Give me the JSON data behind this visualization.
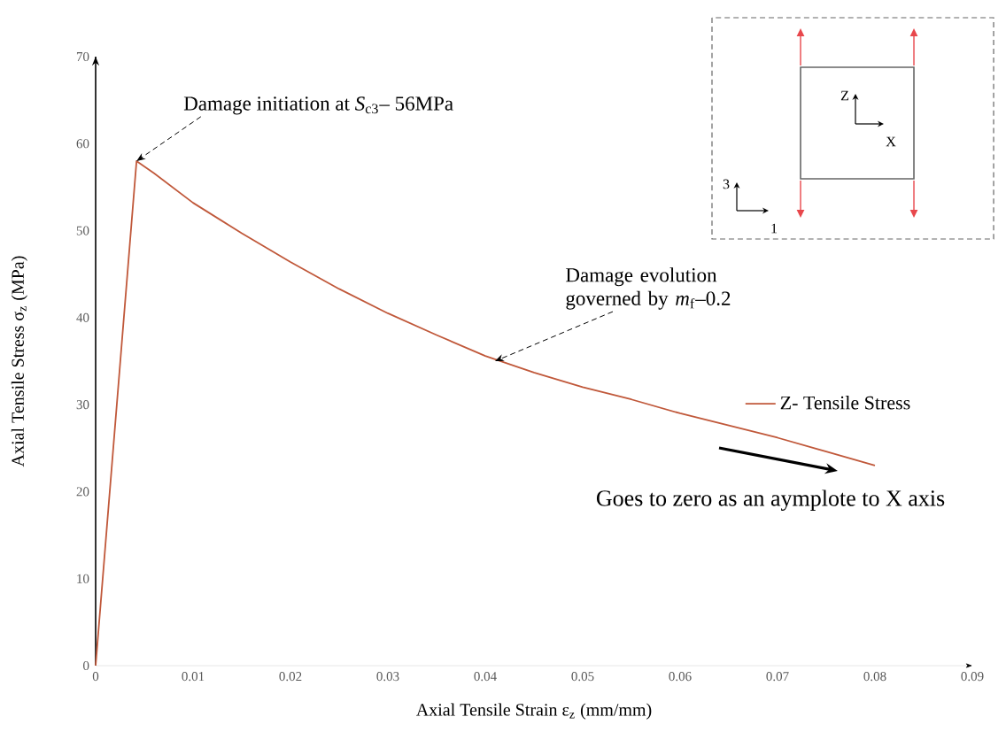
{
  "chart_data": {
    "type": "line",
    "xlabel": "Axial Tensile Strain ε$_{z}$ (mm/mm)",
    "ylabel": "Axial Tensile Stress σ$_{z}$ (MPa)",
    "x": [
      0,
      0.0042,
      0.006,
      0.01,
      0.015,
      0.02,
      0.025,
      0.03,
      0.035,
      0.04,
      0.045,
      0.05,
      0.055,
      0.06,
      0.065,
      0.07,
      0.075,
      0.08
    ],
    "series": [
      {
        "name": "Z- Tensile Stress",
        "color": "#c0583a",
        "values": [
          0,
          58,
          56.6,
          53.2,
          49.7,
          46.4,
          43.3,
          40.5,
          38,
          35.6,
          33.7,
          32,
          30.6,
          29,
          27.6,
          26.2,
          24.6,
          23
        ]
      }
    ],
    "xlim": [
      0,
      0.09
    ],
    "xticks": [
      0,
      0.01,
      0.02,
      0.03,
      0.04,
      0.05,
      0.06,
      0.07,
      0.08,
      0.09
    ],
    "ylim": [
      0,
      70
    ],
    "yticks": [
      0,
      10,
      20,
      30,
      40,
      50,
      60,
      70
    ],
    "legend": "right",
    "line_style": "solid",
    "annotations": [
      {
        "text": "Damage initiation at *S*$_{c3}$– 56MPa",
        "x": 0.0042,
        "y": 58
      },
      {
        "text": "Damage evolution governed by *m*$_{f}$–0.2",
        "x": 0.041,
        "y": 35
      },
      "Goes to zero as an aymplote to X axis",
      "Z",
      "X",
      "3",
      "1"
    ]
  }
}
